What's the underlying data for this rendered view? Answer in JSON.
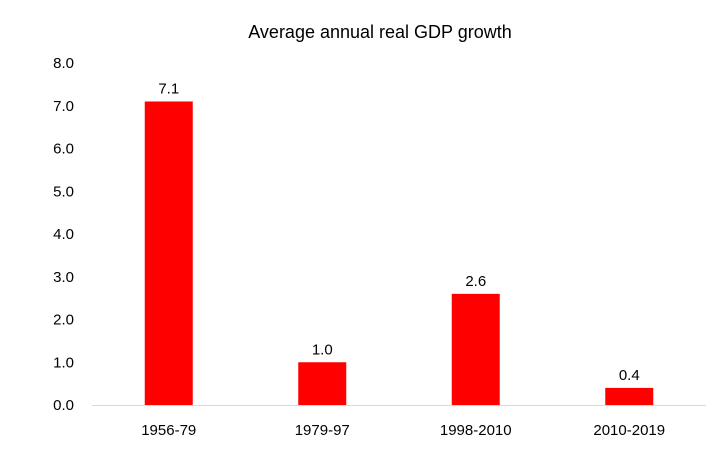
{
  "chart_data": {
    "type": "bar",
    "title": "Average annual real GDP growth",
    "categories": [
      "1956-79",
      "1979-97",
      "1998-2010",
      "2010-2019"
    ],
    "values": [
      7.1,
      1.0,
      2.6,
      0.4
    ],
    "data_labels": [
      "7.1",
      "1.0",
      "2.6",
      "0.4"
    ],
    "ylim": [
      0,
      8
    ],
    "y_ticks": [
      "0.0",
      "1.0",
      "2.0",
      "3.0",
      "4.0",
      "5.0",
      "6.0",
      "7.0",
      "8.0"
    ],
    "xlabel": "",
    "ylabel": "",
    "grid": false,
    "legend": "none",
    "bar_color": "#ff0000",
    "axis_color": "#d9d9d9"
  }
}
